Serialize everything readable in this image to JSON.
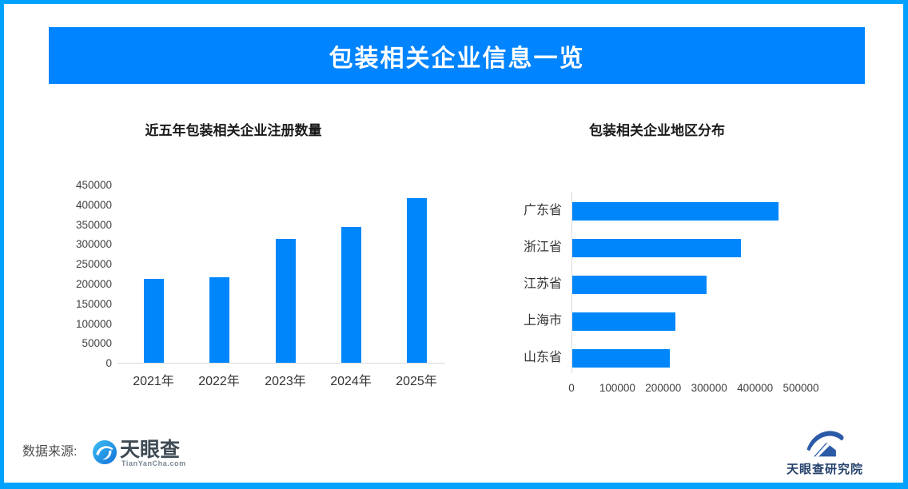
{
  "page": {
    "title": "包装相关企业信息一览",
    "banner_color": "#0084FF",
    "border_color": "#00A2FD",
    "bar_color": "#0086FB"
  },
  "footer": {
    "source_label": "数据来源:",
    "tianyancha": {
      "wordmark": "天眼查",
      "domain": "TianYanCha.com"
    },
    "institute": {
      "wordmark": "天眼查研究院"
    }
  },
  "chart_data": [
    {
      "type": "bar",
      "orientation": "vertical",
      "title": "近五年包装相关企业注册数量",
      "categories": [
        "2021年",
        "2022年",
        "2023年",
        "2024年",
        "2025年"
      ],
      "values": [
        211000,
        216000,
        312000,
        344000,
        415000
      ],
      "ylim": [
        0,
        450000
      ],
      "yticks": [
        450000,
        400000,
        350000,
        300000,
        250000,
        200000,
        150000,
        100000,
        50000,
        0
      ],
      "grid": false,
      "legend": "none",
      "bar_color": "#0086FB"
    },
    {
      "type": "bar",
      "orientation": "horizontal",
      "title": "包装相关企业地区分布",
      "categories": [
        "广东省",
        "浙江省",
        "江苏省",
        "上海市",
        "山东省"
      ],
      "values": [
        450000,
        368000,
        292000,
        224000,
        212000
      ],
      "xlim": [
        0,
        500000
      ],
      "xticks": [
        0,
        100000,
        200000,
        300000,
        400000,
        500000
      ],
      "grid": false,
      "legend": "none",
      "bar_color": "#0086FB"
    }
  ]
}
